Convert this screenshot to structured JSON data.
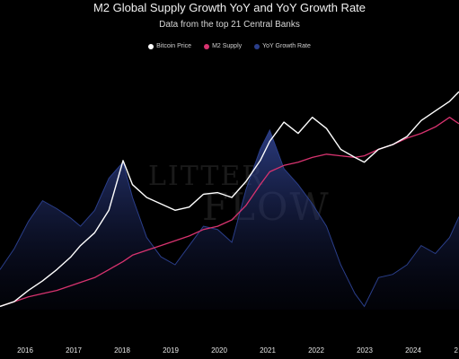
{
  "chart_data": {
    "type": "line",
    "title": "M2 Global Supply Growth YoY and YoY Growth Rate",
    "subtitle": "Data from the top 21 Central Banks",
    "legend_position": "top-center",
    "grid": false,
    "x_tick_labels": [
      "2016",
      "2017",
      "2018",
      "2019",
      "2020",
      "2021",
      "2022",
      "2023",
      "2024",
      "2"
    ],
    "series": [
      {
        "name": "Bitcoin Price",
        "color": "#ffffff",
        "style": "line",
        "x": [
          2015.3,
          2015.6,
          2015.9,
          2016.2,
          2016.5,
          2016.8,
          2017.0,
          2017.3,
          2017.6,
          2017.9,
          2018.1,
          2018.4,
          2018.7,
          2019.0,
          2019.3,
          2019.6,
          2019.9,
          2020.2,
          2020.5,
          2020.8,
          2021.0,
          2021.3,
          2021.6,
          2021.9,
          2022.2,
          2022.5,
          2022.8,
          2023.0,
          2023.3,
          2023.6,
          2023.9,
          2024.2,
          2024.5,
          2024.8,
          2025.0
        ],
        "y": [
          0.02,
          0.05,
          0.12,
          0.18,
          0.25,
          0.33,
          0.4,
          0.48,
          0.62,
          0.93,
          0.78,
          0.7,
          0.66,
          0.62,
          0.64,
          0.72,
          0.73,
          0.7,
          0.8,
          0.93,
          1.05,
          1.17,
          1.1,
          1.2,
          1.13,
          1.0,
          0.95,
          0.92,
          1.0,
          1.03,
          1.08,
          1.18,
          1.24,
          1.3,
          1.36
        ]
      },
      {
        "name": "M2 Supply",
        "color": "#d7336f",
        "style": "line",
        "x": [
          2015.3,
          2015.6,
          2015.9,
          2016.2,
          2016.5,
          2016.8,
          2017.0,
          2017.3,
          2017.6,
          2017.9,
          2018.1,
          2018.4,
          2018.7,
          2019.0,
          2019.3,
          2019.6,
          2019.9,
          2020.2,
          2020.5,
          2020.8,
          2021.0,
          2021.3,
          2021.6,
          2021.9,
          2022.2,
          2022.5,
          2022.8,
          2023.0,
          2023.3,
          2023.6,
          2023.9,
          2024.2,
          2024.5,
          2024.8,
          2025.0
        ],
        "y": [
          0.02,
          0.05,
          0.08,
          0.1,
          0.12,
          0.15,
          0.17,
          0.2,
          0.25,
          0.3,
          0.34,
          0.37,
          0.4,
          0.43,
          0.46,
          0.5,
          0.52,
          0.56,
          0.65,
          0.78,
          0.86,
          0.9,
          0.92,
          0.95,
          0.97,
          0.96,
          0.95,
          0.96,
          1.0,
          1.03,
          1.07,
          1.1,
          1.14,
          1.2,
          1.16
        ]
      },
      {
        "name": "YoY Growth Rate",
        "color": "#2a3e8a",
        "style": "area",
        "x": [
          2015.3,
          2015.6,
          2015.9,
          2016.2,
          2016.5,
          2016.8,
          2017.0,
          2017.3,
          2017.6,
          2017.9,
          2018.1,
          2018.4,
          2018.7,
          2019.0,
          2019.3,
          2019.6,
          2019.9,
          2020.2,
          2020.5,
          2020.8,
          2021.0,
          2021.3,
          2021.6,
          2021.9,
          2022.2,
          2022.5,
          2022.8,
          2023.0,
          2023.3,
          2023.6,
          2023.9,
          2024.2,
          2024.5,
          2024.8,
          2025.0
        ],
        "y": [
          0.25,
          0.38,
          0.55,
          0.68,
          0.63,
          0.57,
          0.52,
          0.62,
          0.82,
          0.92,
          0.7,
          0.45,
          0.33,
          0.28,
          0.4,
          0.52,
          0.5,
          0.42,
          0.75,
          1.0,
          1.12,
          0.88,
          0.78,
          0.66,
          0.52,
          0.28,
          0.1,
          0.02,
          0.2,
          0.22,
          0.28,
          0.4,
          0.35,
          0.45,
          0.58
        ]
      }
    ]
  },
  "watermark": {
    "line1": "LITTER",
    "line2": "FLOW"
  }
}
